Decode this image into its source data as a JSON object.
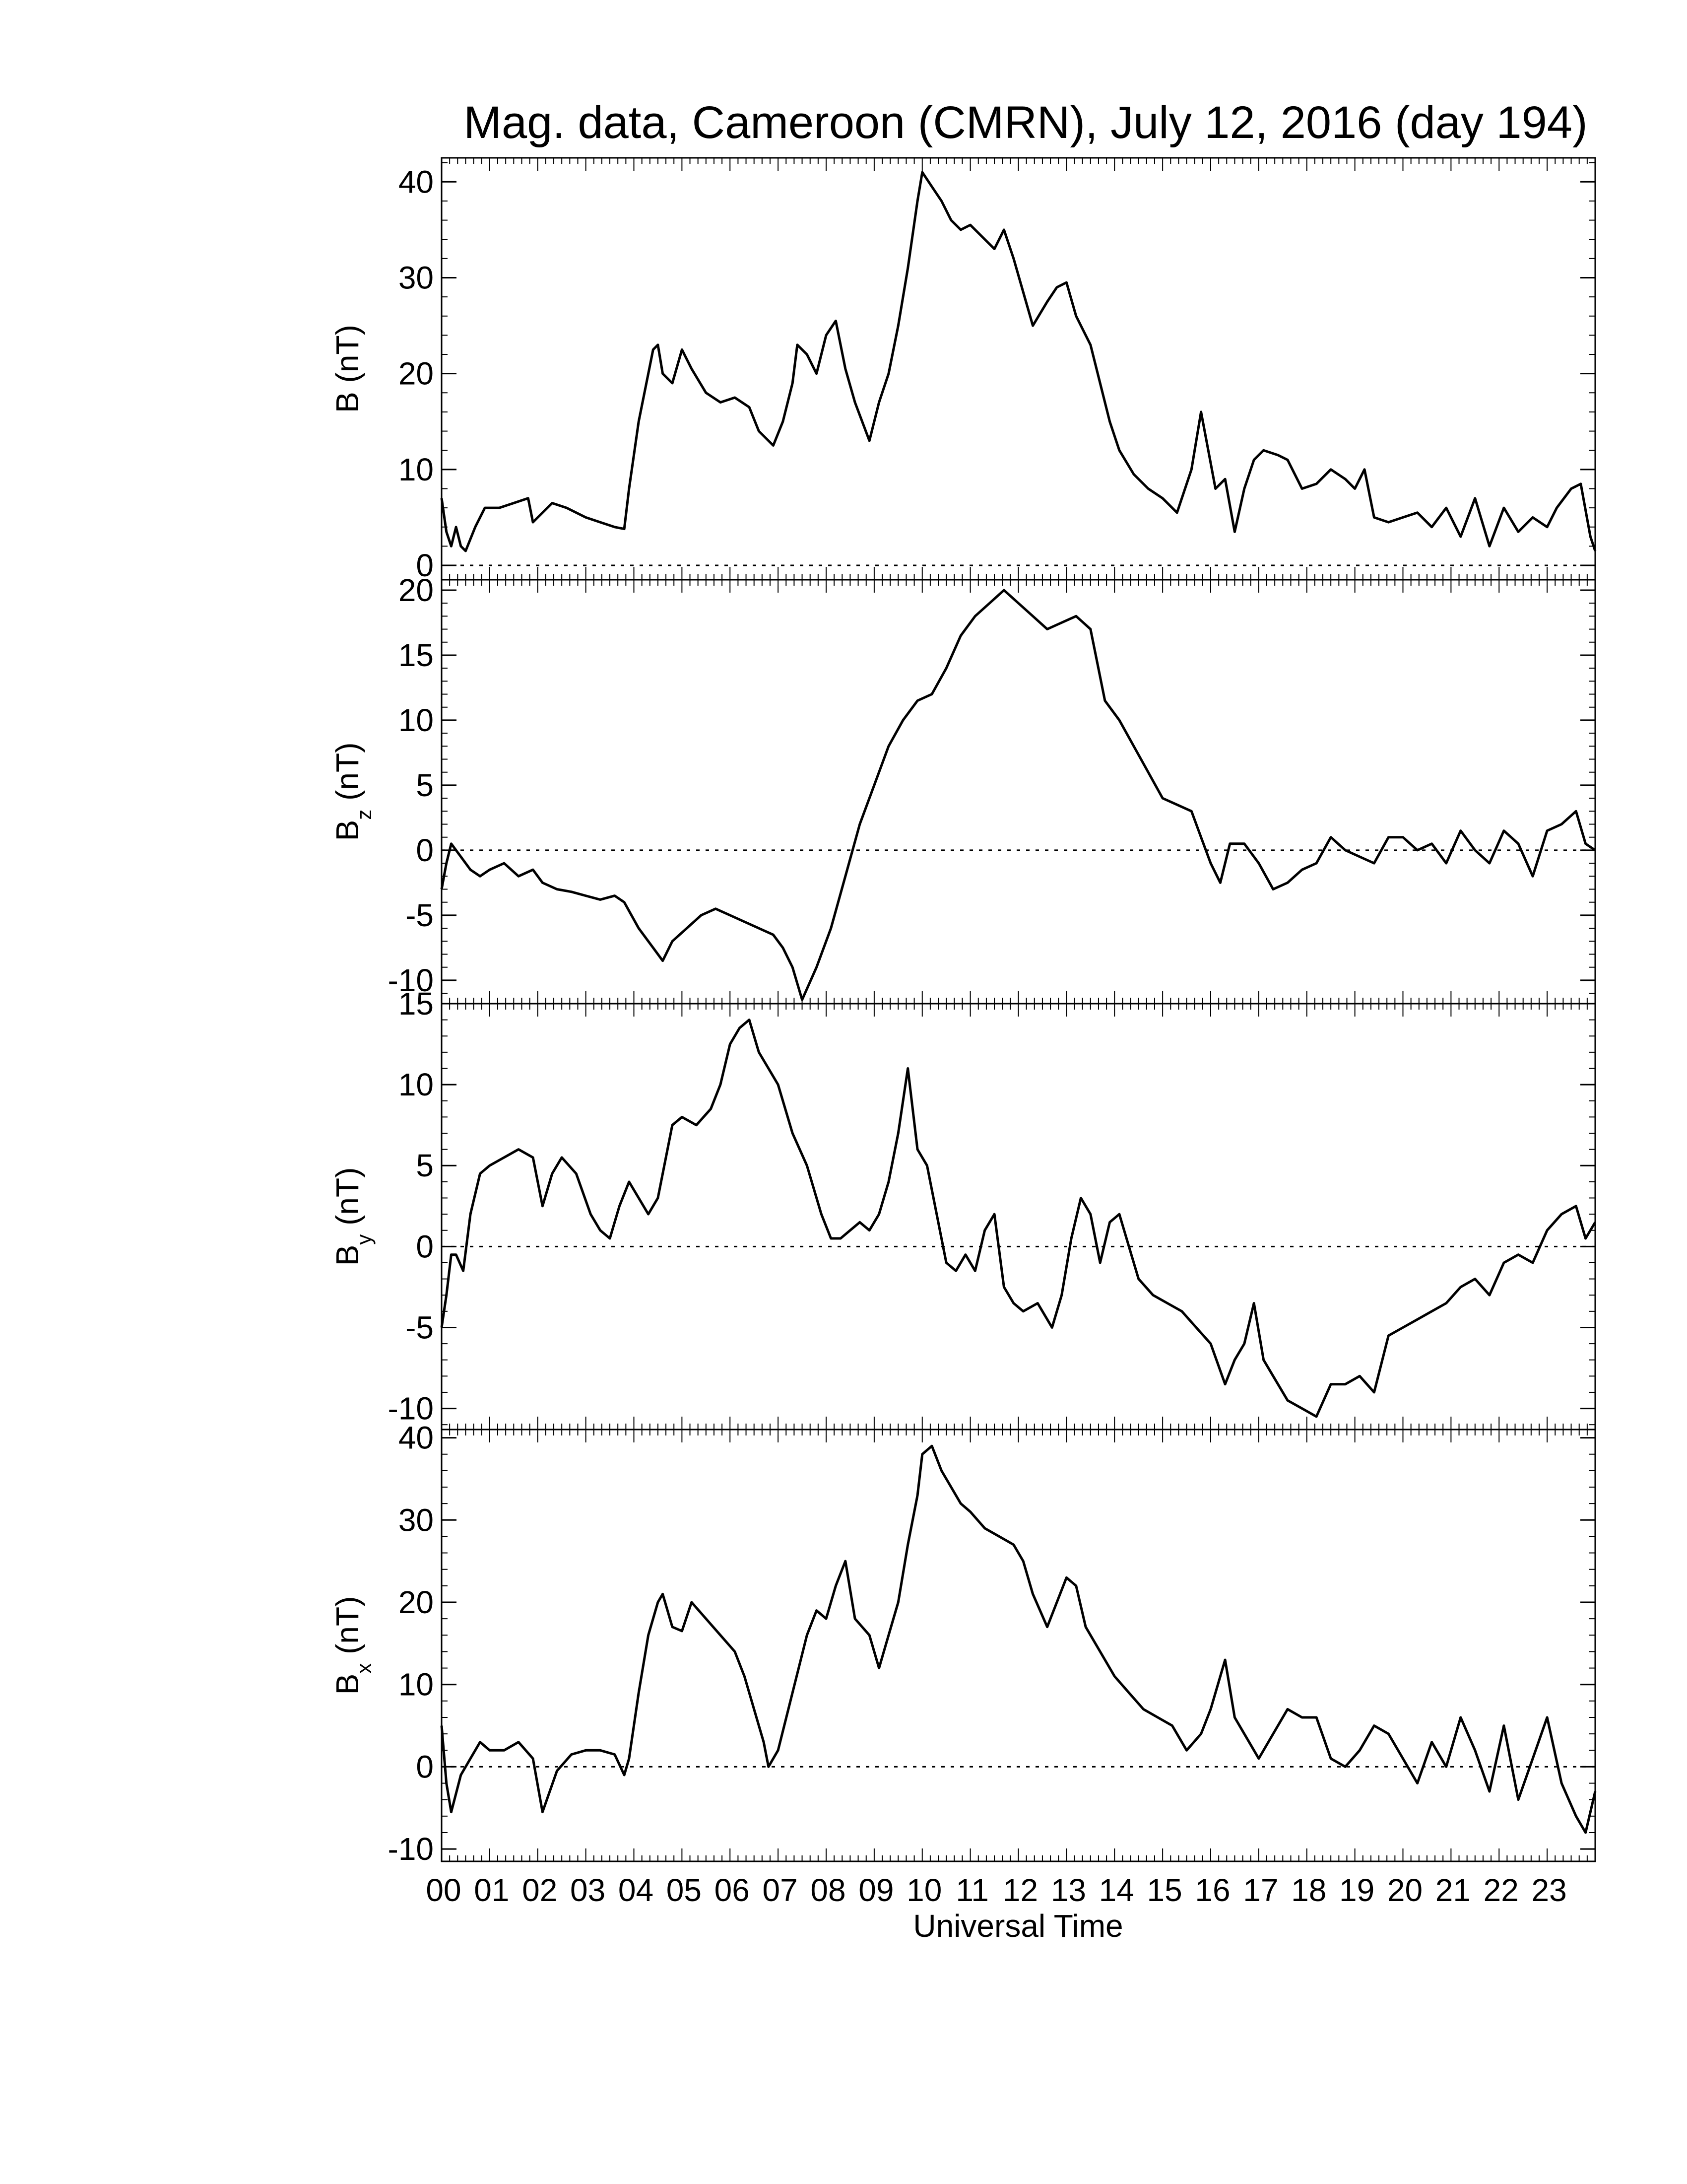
{
  "chart_data": {
    "type": "line",
    "title": "Mag. data, Cameroon (CMRN), July 12, 2016 (day 194)",
    "xlabel": "Universal Time",
    "x_tick_labels": [
      "00",
      "01",
      "02",
      "03",
      "04",
      "05",
      "06",
      "07",
      "08",
      "09",
      "10",
      "11",
      "12",
      "13",
      "14",
      "15",
      "16",
      "17",
      "18",
      "19",
      "20",
      "21",
      "22",
      "23"
    ],
    "xlim": [
      0,
      24
    ],
    "zero_line": "dotted",
    "panels": [
      {
        "name": "B",
        "ylabel_main": "B (nT)",
        "ylabel_base": "",
        "ylabel_sub": "",
        "ylabel_rest": "",
        "ylim": [
          -1.5,
          42.5
        ],
        "yticks": [
          0,
          10,
          20,
          30,
          40
        ],
        "x": [
          0.0,
          0.1,
          0.2,
          0.3,
          0.4,
          0.5,
          0.7,
          0.9,
          1.2,
          1.5,
          1.8,
          1.9,
          2.0,
          2.3,
          2.6,
          3.0,
          3.3,
          3.6,
          3.8,
          3.9,
          4.1,
          4.3,
          4.4,
          4.5,
          4.6,
          4.8,
          5.0,
          5.2,
          5.5,
          5.8,
          6.1,
          6.4,
          6.6,
          6.9,
          7.1,
          7.3,
          7.4,
          7.6,
          7.8,
          8.0,
          8.2,
          8.4,
          8.6,
          8.9,
          9.1,
          9.3,
          9.5,
          9.7,
          9.9,
          10.0,
          10.2,
          10.4,
          10.6,
          10.8,
          11.0,
          11.2,
          11.5,
          11.7,
          11.9,
          12.1,
          12.3,
          12.6,
          12.8,
          13.0,
          13.2,
          13.5,
          13.7,
          13.9,
          14.1,
          14.4,
          14.7,
          15.0,
          15.3,
          15.6,
          15.8,
          16.1,
          16.3,
          16.5,
          16.7,
          16.9,
          17.1,
          17.4,
          17.6,
          17.9,
          18.2,
          18.5,
          18.8,
          19.0,
          19.2,
          19.4,
          19.7,
          20.0,
          20.3,
          20.6,
          20.9,
          21.2,
          21.5,
          21.8,
          22.1,
          22.4,
          22.7,
          23.0,
          23.2,
          23.5,
          23.7,
          23.9,
          24.0
        ],
        "y": [
          7.0,
          3.5,
          2.0,
          4.0,
          2.0,
          1.5,
          4.0,
          6.0,
          6.0,
          6.5,
          7.0,
          4.5,
          5.0,
          6.5,
          6.0,
          5.0,
          4.5,
          4.0,
          3.8,
          8.0,
          15.0,
          20.0,
          22.5,
          23.0,
          20.0,
          19.0,
          22.5,
          20.5,
          18.0,
          17.0,
          17.5,
          16.5,
          14.0,
          12.5,
          15.0,
          19.0,
          23.0,
          22.0,
          20.0,
          24.0,
          25.5,
          20.5,
          17.0,
          13.0,
          17.0,
          20.0,
          25.0,
          31.0,
          38.0,
          41.0,
          39.5,
          38.0,
          36.0,
          35.0,
          35.5,
          34.5,
          33.0,
          35.0,
          32.0,
          28.5,
          25.0,
          27.5,
          29.0,
          29.5,
          26.0,
          23.0,
          19.0,
          15.0,
          12.0,
          9.5,
          8.0,
          7.0,
          5.5,
          10.0,
          16.0,
          8.0,
          9.0,
          3.5,
          8.0,
          11.0,
          12.0,
          11.5,
          11.0,
          8.0,
          8.5,
          10.0,
          9.0,
          8.0,
          10.0,
          5.0,
          4.5,
          5.0,
          5.5,
          4.0,
          6.0,
          3.0,
          7.0,
          2.0,
          6.0,
          3.5,
          5.0,
          4.0,
          6.0,
          8.0,
          8.5,
          3.0,
          1.5
        ]
      },
      {
        "name": "Bz",
        "ylabel_main": "",
        "ylabel_base": "B",
        "ylabel_sub": "z",
        "ylabel_rest": " (nT)",
        "ylim": [
          -11.8,
          20.8
        ],
        "yticks": [
          -10,
          -5,
          0,
          5,
          10,
          15,
          20
        ],
        "x": [
          0.0,
          0.1,
          0.2,
          0.4,
          0.6,
          0.8,
          1.0,
          1.3,
          1.6,
          1.9,
          2.1,
          2.4,
          2.7,
          3.0,
          3.3,
          3.6,
          3.8,
          4.1,
          4.4,
          4.6,
          4.8,
          5.1,
          5.4,
          5.7,
          6.0,
          6.3,
          6.6,
          6.9,
          7.1,
          7.3,
          7.5,
          7.8,
          8.1,
          8.4,
          8.7,
          9.0,
          9.3,
          9.6,
          9.9,
          10.2,
          10.5,
          10.8,
          11.1,
          11.4,
          11.7,
          12.0,
          12.3,
          12.6,
          12.9,
          13.2,
          13.5,
          13.8,
          14.1,
          14.4,
          14.7,
          15.0,
          15.3,
          15.6,
          15.8,
          16.0,
          16.2,
          16.4,
          16.7,
          17.0,
          17.3,
          17.6,
          17.9,
          18.2,
          18.5,
          18.8,
          19.1,
          19.4,
          19.7,
          20.0,
          20.3,
          20.6,
          20.9,
          21.2,
          21.5,
          21.8,
          22.1,
          22.4,
          22.7,
          23.0,
          23.3,
          23.6,
          23.8,
          24.0
        ],
        "y": [
          -3.0,
          -1.0,
          0.5,
          -0.5,
          -1.5,
          -2.0,
          -1.5,
          -1.0,
          -2.0,
          -1.5,
          -2.5,
          -3.0,
          -3.2,
          -3.5,
          -3.8,
          -3.5,
          -4.0,
          -6.0,
          -7.5,
          -8.5,
          -7.0,
          -6.0,
          -5.0,
          -4.5,
          -5.0,
          -5.5,
          -6.0,
          -6.5,
          -7.5,
          -9.0,
          -11.5,
          -9.0,
          -6.0,
          -2.0,
          2.0,
          5.0,
          8.0,
          10.0,
          11.5,
          12.0,
          14.0,
          16.5,
          18.0,
          19.0,
          20.0,
          19.0,
          18.0,
          17.0,
          17.5,
          18.0,
          17.0,
          11.5,
          10.0,
          8.0,
          6.0,
          4.0,
          3.5,
          3.0,
          1.0,
          -1.0,
          -2.5,
          0.5,
          0.5,
          -1.0,
          -3.0,
          -2.5,
          -1.5,
          -1.0,
          1.0,
          0.0,
          -0.5,
          -1.0,
          1.0,
          1.0,
          0.0,
          0.5,
          -1.0,
          1.5,
          0.0,
          -1.0,
          1.5,
          0.5,
          -2.0,
          1.5,
          2.0,
          3.0,
          0.5,
          0.0
        ]
      },
      {
        "name": "By",
        "ylabel_main": "",
        "ylabel_base": "B",
        "ylabel_sub": "y",
        "ylabel_rest": " (nT)",
        "ylim": [
          -11.3,
          15.0
        ],
        "yticks": [
          -10,
          -5,
          0,
          5,
          10,
          15
        ],
        "x": [
          0.0,
          0.1,
          0.2,
          0.3,
          0.45,
          0.6,
          0.8,
          1.0,
          1.3,
          1.6,
          1.9,
          2.1,
          2.3,
          2.5,
          2.8,
          3.1,
          3.3,
          3.5,
          3.7,
          3.9,
          4.1,
          4.3,
          4.5,
          4.8,
          5.0,
          5.3,
          5.6,
          5.8,
          6.0,
          6.2,
          6.4,
          6.6,
          6.8,
          7.0,
          7.3,
          7.6,
          7.9,
          8.1,
          8.3,
          8.5,
          8.7,
          8.9,
          9.1,
          9.3,
          9.5,
          9.7,
          9.9,
          10.1,
          10.3,
          10.5,
          10.7,
          10.9,
          11.1,
          11.3,
          11.5,
          11.7,
          11.9,
          12.1,
          12.4,
          12.7,
          12.9,
          13.1,
          13.3,
          13.5,
          13.7,
          13.9,
          14.1,
          14.3,
          14.5,
          14.8,
          15.1,
          15.4,
          15.7,
          16.0,
          16.3,
          16.5,
          16.7,
          16.9,
          17.1,
          17.3,
          17.6,
          17.9,
          18.2,
          18.5,
          18.8,
          19.1,
          19.4,
          19.7,
          20.0,
          20.3,
          20.6,
          20.9,
          21.2,
          21.5,
          21.8,
          22.1,
          22.4,
          22.7,
          23.0,
          23.3,
          23.6,
          23.8,
          24.0
        ],
        "y": [
          -5.0,
          -3.0,
          -0.5,
          -0.5,
          -1.5,
          2.0,
          4.5,
          5.0,
          5.5,
          6.0,
          5.5,
          2.5,
          4.5,
          5.5,
          4.5,
          2.0,
          1.0,
          0.5,
          2.5,
          4.0,
          3.0,
          2.0,
          3.0,
          7.5,
          8.0,
          7.5,
          8.5,
          10.0,
          12.5,
          13.5,
          14.0,
          12.0,
          11.0,
          10.0,
          7.0,
          5.0,
          2.0,
          0.5,
          0.5,
          1.0,
          1.5,
          1.0,
          2.0,
          4.0,
          7.0,
          11.0,
          6.0,
          5.0,
          2.0,
          -1.0,
          -1.5,
          -0.5,
          -1.5,
          1.0,
          2.0,
          -2.5,
          -3.5,
          -4.0,
          -3.5,
          -5.0,
          -3.0,
          0.5,
          3.0,
          2.0,
          -1.0,
          1.5,
          2.0,
          0.0,
          -2.0,
          -3.0,
          -3.5,
          -4.0,
          -5.0,
          -6.0,
          -8.5,
          -7.0,
          -6.0,
          -3.5,
          -7.0,
          -8.0,
          -9.5,
          -10.0,
          -10.5,
          -8.5,
          -8.5,
          -8.0,
          -9.0,
          -5.5,
          -5.0,
          -4.5,
          -4.0,
          -3.5,
          -2.5,
          -2.0,
          -3.0,
          -1.0,
          -0.5,
          -1.0,
          1.0,
          2.0,
          2.5,
          0.5,
          1.5
        ]
      },
      {
        "name": "Bx",
        "ylabel_main": "",
        "ylabel_base": "B",
        "ylabel_sub": "x",
        "ylabel_rest": " (nT)",
        "ylim": [
          -11.5,
          41.0
        ],
        "yticks": [
          -10,
          0,
          10,
          20,
          30,
          40
        ],
        "x": [
          0.0,
          0.1,
          0.2,
          0.4,
          0.6,
          0.8,
          1.0,
          1.3,
          1.6,
          1.9,
          2.1,
          2.4,
          2.7,
          3.0,
          3.3,
          3.6,
          3.8,
          3.9,
          4.1,
          4.3,
          4.5,
          4.6,
          4.8,
          5.0,
          5.2,
          5.5,
          5.8,
          6.1,
          6.3,
          6.5,
          6.7,
          6.8,
          7.0,
          7.3,
          7.6,
          7.8,
          8.0,
          8.2,
          8.4,
          8.6,
          8.9,
          9.1,
          9.3,
          9.5,
          9.7,
          9.9,
          10.0,
          10.2,
          10.4,
          10.6,
          10.8,
          11.0,
          11.3,
          11.6,
          11.9,
          12.1,
          12.3,
          12.6,
          12.8,
          13.0,
          13.2,
          13.4,
          13.7,
          14.0,
          14.3,
          14.6,
          14.9,
          15.2,
          15.5,
          15.8,
          16.0,
          16.3,
          16.5,
          16.8,
          17.0,
          17.3,
          17.6,
          17.9,
          18.2,
          18.5,
          18.8,
          19.1,
          19.4,
          19.7,
          20.0,
          20.3,
          20.6,
          20.9,
          21.2,
          21.5,
          21.8,
          22.1,
          22.4,
          22.7,
          23.0,
          23.3,
          23.6,
          23.8,
          24.0
        ],
        "y": [
          5.0,
          -2.0,
          -5.5,
          -1.0,
          1.0,
          3.0,
          2.0,
          2.0,
          3.0,
          1.0,
          -5.5,
          -0.5,
          1.5,
          2.0,
          2.0,
          1.5,
          -1.0,
          1.0,
          9.0,
          16.0,
          20.0,
          21.0,
          17.0,
          16.5,
          20.0,
          18.0,
          16.0,
          14.0,
          11.0,
          7.0,
          3.0,
          0.0,
          2.0,
          9.0,
          16.0,
          19.0,
          18.0,
          22.0,
          25.0,
          18.0,
          16.0,
          12.0,
          16.0,
          20.0,
          27.0,
          33.0,
          38.0,
          39.0,
          36.0,
          34.0,
          32.0,
          31.0,
          29.0,
          28.0,
          27.0,
          25.0,
          21.0,
          17.0,
          20.0,
          23.0,
          22.0,
          17.0,
          14.0,
          11.0,
          9.0,
          7.0,
          6.0,
          5.0,
          2.0,
          4.0,
          7.0,
          13.0,
          6.0,
          3.0,
          1.0,
          4.0,
          7.0,
          6.0,
          6.0,
          1.0,
          0.0,
          2.0,
          5.0,
          4.0,
          1.0,
          -2.0,
          3.0,
          0.0,
          6.0,
          2.0,
          -3.0,
          5.0,
          -4.0,
          1.0,
          6.0,
          -2.0,
          -6.0,
          -8.0,
          -3.0
        ]
      }
    ]
  }
}
